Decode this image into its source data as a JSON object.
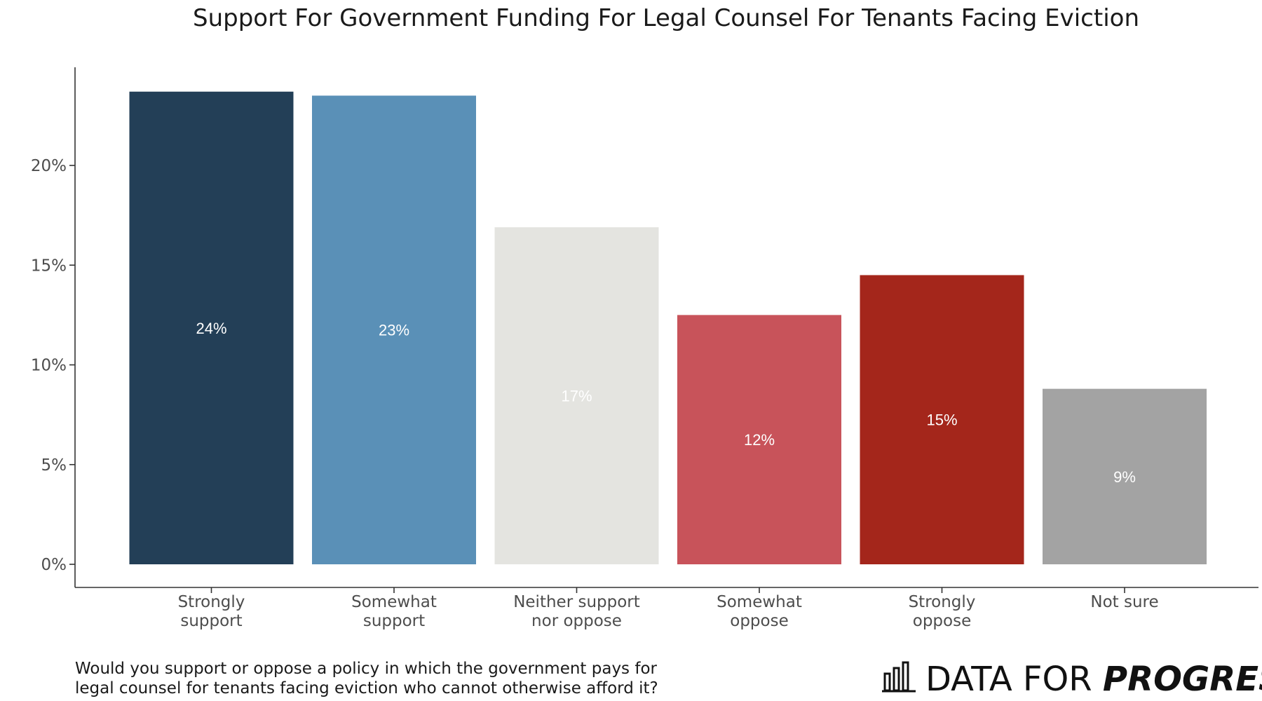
{
  "chart_data": {
    "type": "bar",
    "title": "Support For Government Funding For Legal Counsel For Tenants Facing Eviction",
    "categories": [
      [
        "Strongly",
        "support"
      ],
      [
        "Somewhat",
        "support"
      ],
      [
        "Neither support",
        "nor oppose"
      ],
      [
        "Somewhat",
        "oppose"
      ],
      [
        "Strongly",
        "oppose"
      ],
      [
        "Not sure"
      ]
    ],
    "values": [
      23.7,
      23.5,
      16.9,
      12.5,
      14.5,
      8.8
    ],
    "data_labels": [
      "24%",
      "23%",
      "17%",
      "12%",
      "15%",
      "9%"
    ],
    "colors": [
      "#233f57",
      "#5a90b7",
      "#e4e4e0",
      "#c8535a",
      "#a4261b",
      "#a3a3a3"
    ],
    "ylim": [
      0,
      25
    ],
    "yticks": [
      0,
      5,
      10,
      15,
      20
    ],
    "ytick_labels": [
      "0%",
      "5%",
      "10%",
      "15%",
      "20%"
    ],
    "xlabel": "",
    "ylabel": "",
    "grid": false,
    "legend": "none"
  },
  "caption": [
    "Would you support or oppose a policy in which the government pays for",
    "legal counsel for tenants facing eviction who cannot otherwise afford it?"
  ],
  "brand": {
    "light": "DATA FOR ",
    "bold": "PROGRESS",
    "icon": "bar-chart-logo-icon"
  }
}
